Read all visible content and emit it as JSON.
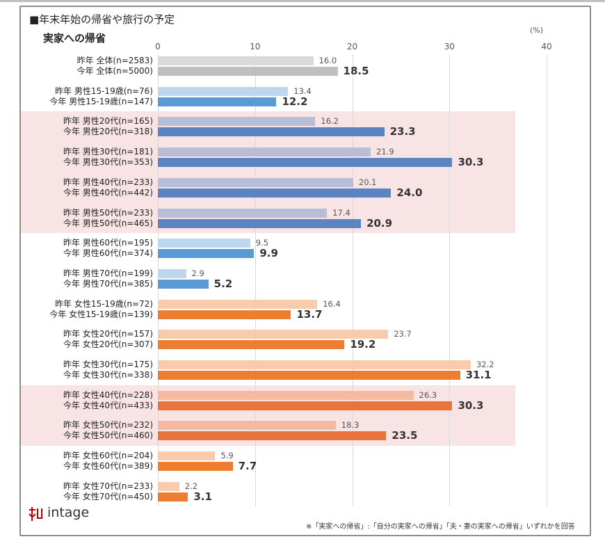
{
  "chart_data": {
    "type": "bar",
    "orientation": "horizontal",
    "title": "■年末年始の帰省や旅行の予定",
    "subtitle": "実家への帰省",
    "unit": "(%)",
    "xlim": [
      0,
      40
    ],
    "ticks": [
      "0",
      "10",
      "20",
      "30",
      "40"
    ],
    "grid": true,
    "categories": [
      {
        "last_label": "昨年 全体(n=2583)",
        "this_label": "今年 全体(n=5000)",
        "last": 16.0,
        "this": 18.5,
        "color_group": "gray",
        "highlight": false
      },
      {
        "last_label": "昨年 男性15-19歳(n=76)",
        "this_label": "今年 男性15-19歳(n=147)",
        "last": 13.4,
        "this": 12.2,
        "color_group": "blue",
        "highlight": false
      },
      {
        "last_label": "昨年 男性20代(n=165)",
        "this_label": "今年 男性20代(n=318)",
        "last": 16.2,
        "this": 23.3,
        "color_group": "blue",
        "highlight": true
      },
      {
        "last_label": "昨年 男性30代(n=181)",
        "this_label": "今年 男性30代(n=353)",
        "last": 21.9,
        "this": 30.3,
        "color_group": "blue",
        "highlight": true
      },
      {
        "last_label": "昨年 男性40代(n=233)",
        "this_label": "今年 男性40代(n=442)",
        "last": 20.1,
        "this": 24.0,
        "color_group": "blue",
        "highlight": true
      },
      {
        "last_label": "昨年 男性50代(n=233)",
        "this_label": "今年 男性50代(n=465)",
        "last": 17.4,
        "this": 20.9,
        "color_group": "blue",
        "highlight": true
      },
      {
        "last_label": "昨年 男性60代(n=195)",
        "this_label": "今年 男性60代(n=374)",
        "last": 9.5,
        "this": 9.9,
        "color_group": "blue",
        "highlight": false
      },
      {
        "last_label": "昨年 男性70代(n=199)",
        "this_label": "今年 男性70代(n=385)",
        "last": 2.9,
        "this": 5.2,
        "color_group": "blue",
        "highlight": false
      },
      {
        "last_label": "昨年 女性15-19歳(n=72)",
        "this_label": "今年 女性15-19歳(n=139)",
        "last": 16.4,
        "this": 13.7,
        "color_group": "orange",
        "highlight": false
      },
      {
        "last_label": "昨年 女性20代(n=157)",
        "this_label": "今年 女性20代(n=307)",
        "last": 23.7,
        "this": 19.2,
        "color_group": "orange",
        "highlight": false
      },
      {
        "last_label": "昨年 女性30代(n=175)",
        "this_label": "今年 女性30代(n=338)",
        "last": 32.2,
        "this": 31.1,
        "color_group": "orange",
        "highlight": false
      },
      {
        "last_label": "昨年 女性40代(n=228)",
        "this_label": "今年 女性40代(n=433)",
        "last": 26.3,
        "this": 30.3,
        "color_group": "orange",
        "highlight": true
      },
      {
        "last_label": "昨年 女性50代(n=232)",
        "this_label": "今年 女性50代(n=460)",
        "last": 18.3,
        "this": 23.5,
        "color_group": "orange",
        "highlight": true
      },
      {
        "last_label": "昨年 女性60代(n=204)",
        "this_label": "今年 女性60代(n=389)",
        "last": 5.9,
        "this": 7.7,
        "color_group": "orange",
        "highlight": false
      },
      {
        "last_label": "昨年 女性70代(n=233)",
        "this_label": "今年 女性70代(n=450)",
        "last": 2.2,
        "this": 3.1,
        "color_group": "orange",
        "highlight": false
      }
    ],
    "colors": {
      "gray": {
        "last": "#d9d9d9",
        "this": "#bfbfbf",
        "last_hl": "#d9d9d9",
        "this_hl": "#bfbfbf"
      },
      "blue": {
        "last": "#bdd7ee",
        "this": "#5b9bd5",
        "last_hl": "#b8bdd8",
        "this_hl": "#5b84c2"
      },
      "orange": {
        "last": "#f8cbad",
        "this": "#ed7d31",
        "last_hl": "#f4b9a0",
        "this_hl": "#e8743b"
      },
      "highlight_band": "#f8e4e4"
    }
  },
  "logo": {
    "text": "intage"
  },
  "footnote": "※「実家への帰省」:「自分の実家への帰省」「夫・妻の実家への帰省」いずれかを回答"
}
